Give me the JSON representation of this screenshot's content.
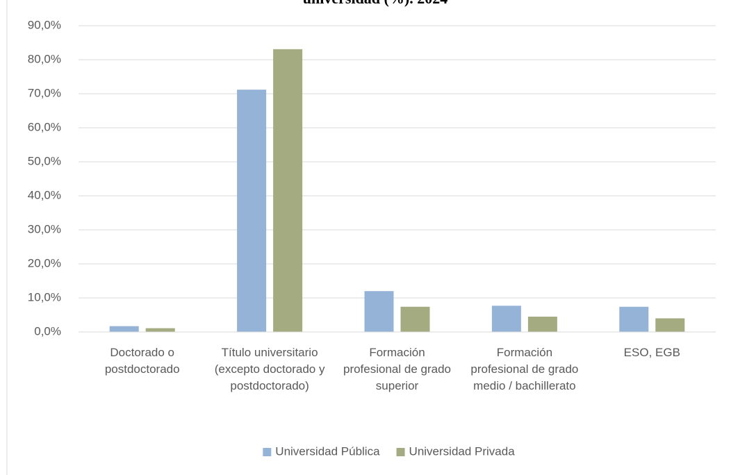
{
  "chart_data": {
    "type": "bar",
    "title": "universidad (%). 2024",
    "categories": [
      "Doctorado o postdoctorado",
      "Título universitario (excepto doctorado y postdoctorado)",
      "Formación profesional de grado superior",
      "Formación profesional de grado medio / bachillerato",
      "ESO, EGB"
    ],
    "series": [
      {
        "name": "Universidad Pública",
        "color": "#95b3d7",
        "values": [
          1.7,
          71.2,
          12.0,
          7.7,
          7.4
        ]
      },
      {
        "name": "Universidad Privada",
        "color": "#a5ab81",
        "values": [
          1.1,
          83.1,
          7.4,
          4.5,
          4.0
        ]
      }
    ],
    "ylim": [
      0,
      90
    ],
    "yticks": [
      {
        "value": 0,
        "label": "0,0%"
      },
      {
        "value": 10,
        "label": "10,0%"
      },
      {
        "value": 20,
        "label": "20,0%"
      },
      {
        "value": 30,
        "label": "30,0%"
      },
      {
        "value": 40,
        "label": "40,0%"
      },
      {
        "value": 50,
        "label": "50,0%"
      },
      {
        "value": 60,
        "label": "60,0%"
      },
      {
        "value": 70,
        "label": "70,0%"
      },
      {
        "value": 80,
        "label": "80,0%"
      },
      {
        "value": 90,
        "label": "90,0%"
      }
    ],
    "grid": true,
    "legend": "bottom"
  }
}
